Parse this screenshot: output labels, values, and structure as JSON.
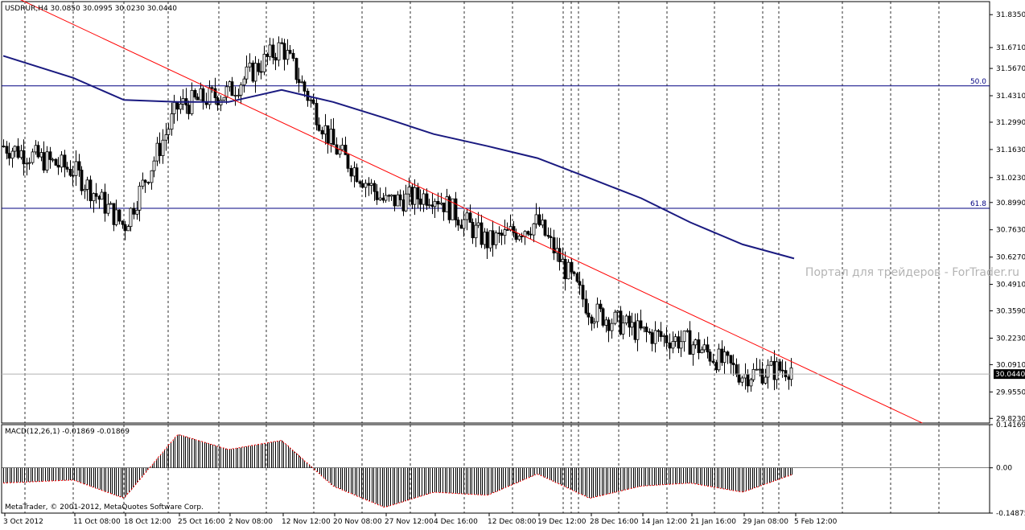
{
  "window": {
    "symbol_header": "USDRUR,H4  30.0850 30.0995 30.0230 30.0440",
    "watermark": "Портал для трейдеров - ForTrader.ru",
    "copyright": "MetaTrader, © 2001-2012, MetaQuotes Software Corp."
  },
  "colors": {
    "background": "#ffffff",
    "frame": "#000000",
    "grid": "#000000",
    "candle": "#000000",
    "moving_average": "#1a1a80",
    "trendline": "#ff0000",
    "fibo_line": "#000080",
    "macd_bars": "#000000",
    "macd_signal": "#ff0000",
    "watermark": "#b4b4b4",
    "price_tag_bg": "#000000",
    "price_tag_fg": "#ffffff"
  },
  "chart_data": [
    {
      "type": "candlestick",
      "title": "USDRUR,H4",
      "ohlc_current": {
        "open": 30.085,
        "high": 30.0995,
        "low": 30.023,
        "close": 30.044
      },
      "y_ticks": [
        "31.8350",
        "31.6710",
        "31.5670",
        "31.4310",
        "31.2990",
        "31.1630",
        "31.0230",
        "30.8990",
        "30.7630",
        "30.6270",
        "30.4910",
        "30.3590",
        "30.2230",
        "30.0910",
        "29.9550",
        "29.8230"
      ],
      "ylim": [
        29.8,
        31.9
      ],
      "current_price_label": "30.0440",
      "x_ticks": [
        "3 Oct 2012",
        "11 Oct 08:00",
        "18 Oct 12:00",
        "25 Oct 16:00",
        "2 Nov 08:00",
        "12 Nov 12:00",
        "20 Nov 08:00",
        "27 Nov 12:00",
        "4 Dec 16:00",
        "12 Dec 08:00",
        "19 Dec 12:00",
        "28 Dec 16:00",
        "14 Jan 12:00",
        "21 Jan 16:00",
        "29 Jan 08:00",
        "5 Feb 12:00"
      ],
      "levels": [
        {
          "label": "50.0",
          "price": 31.48
        },
        {
          "label": "61.8",
          "price": 30.87
        }
      ],
      "trendline": {
        "from": {
          "x": "3 Oct 2012",
          "price": 31.95
        },
        "to": {
          "x": "5 Feb 12:00",
          "price": 30.1
        }
      },
      "moving_average_path": [
        [
          "3 Oct 2012",
          31.63
        ],
        [
          "11 Oct 08:00",
          31.52
        ],
        [
          "18 Oct 12:00",
          31.41
        ],
        [
          "25 Oct 16:00",
          31.4
        ],
        [
          "2 Nov 08:00",
          31.4
        ],
        [
          "12 Nov 12:00",
          31.46
        ],
        [
          "20 Nov 08:00",
          31.4
        ],
        [
          "27 Nov 12:00",
          31.32
        ],
        [
          "4 Dec 16:00",
          31.24
        ],
        [
          "12 Dec 08:00",
          31.18
        ],
        [
          "19 Dec 12:00",
          31.12
        ],
        [
          "28 Dec 16:00",
          31.02
        ],
        [
          "14 Jan 12:00",
          30.92
        ],
        [
          "21 Jan 16:00",
          30.8
        ],
        [
          "29 Jan 08:00",
          30.69
        ],
        [
          "5 Feb 12:00",
          30.62
        ]
      ],
      "close_path": [
        [
          "3 Oct 2012",
          31.18
        ],
        [
          "11 Oct 08:00",
          31.06
        ],
        [
          "18 Oct 12:00",
          30.78
        ],
        [
          "25 Oct 16:00",
          31.38
        ],
        [
          "2 Nov 08:00",
          31.45
        ],
        [
          "12 Nov 12:00",
          31.68
        ],
        [
          "20 Nov 08:00",
          31.18
        ],
        [
          "27 Nov 12:00",
          30.9
        ],
        [
          "4 Dec 16:00",
          30.94
        ],
        [
          "12 Dec 08:00",
          30.7
        ],
        [
          "19 Dec 12:00",
          30.8
        ],
        [
          "28 Dec 16:00",
          30.36
        ],
        [
          "14 Jan 12:00",
          30.25
        ],
        [
          "21 Jan 16:00",
          30.2
        ],
        [
          "29 Jan 08:00",
          30.04
        ],
        [
          "5 Feb 12:00",
          30.08
        ]
      ]
    },
    {
      "type": "bar",
      "title": "MACD(12,26,1) -0.01869 -0.01869",
      "y_ticks": [
        "0.14169",
        "0.00",
        "-0.14875"
      ],
      "ylim": [
        -0.14875,
        0.14169
      ],
      "series": [
        {
          "values": [
            [
              "3 Oct 2012",
              -0.05
            ],
            [
              "11 Oct 08:00",
              -0.04
            ],
            [
              "18 Oct 12:00",
              -0.1
            ],
            [
              "25 Oct 16:00",
              0.11
            ],
            [
              "2 Nov 08:00",
              0.06
            ],
            [
              "12 Nov 12:00",
              0.09
            ],
            [
              "20 Nov 08:00",
              -0.06
            ],
            [
              "27 Nov 12:00",
              -0.13
            ],
            [
              "4 Dec 16:00",
              -0.08
            ],
            [
              "12 Dec 08:00",
              -0.09
            ],
            [
              "19 Dec 12:00",
              -0.02
            ],
            [
              "28 Dec 16:00",
              -0.1
            ],
            [
              "14 Jan 12:00",
              -0.06
            ],
            [
              "21 Jan 16:00",
              -0.05
            ],
            [
              "29 Jan 08:00",
              -0.08
            ],
            [
              "5 Feb 12:00",
              -0.02
            ]
          ]
        }
      ]
    }
  ]
}
